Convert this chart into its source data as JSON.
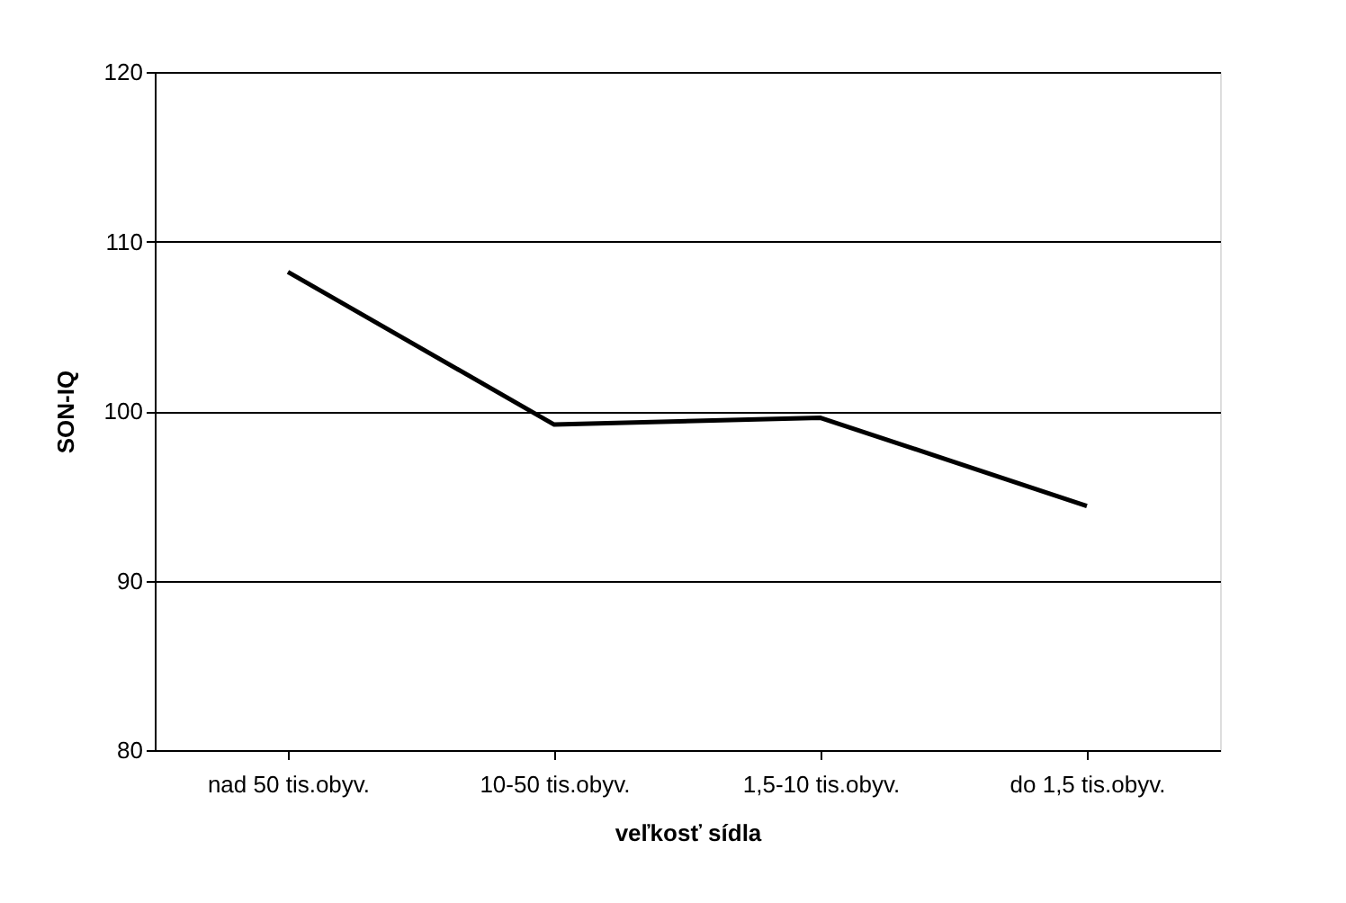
{
  "chart_data": {
    "type": "line",
    "xlabel": "veľkosť sídla",
    "ylabel": "SON-IQ",
    "categories": [
      "nad 50 tis.obyv.",
      "10-50 tis.obyv.",
      "1,5-10 tis.obyv.",
      "do 1,5 tis.obyv."
    ],
    "series": [
      {
        "color": "#000000",
        "values": [
          108.2,
          99.2,
          99.6,
          94.4
        ]
      }
    ],
    "ylim": [
      80,
      120
    ],
    "yticks": [
      80,
      90,
      100,
      110,
      120
    ],
    "grid": "y",
    "marker": "none",
    "line_style": "solid"
  }
}
